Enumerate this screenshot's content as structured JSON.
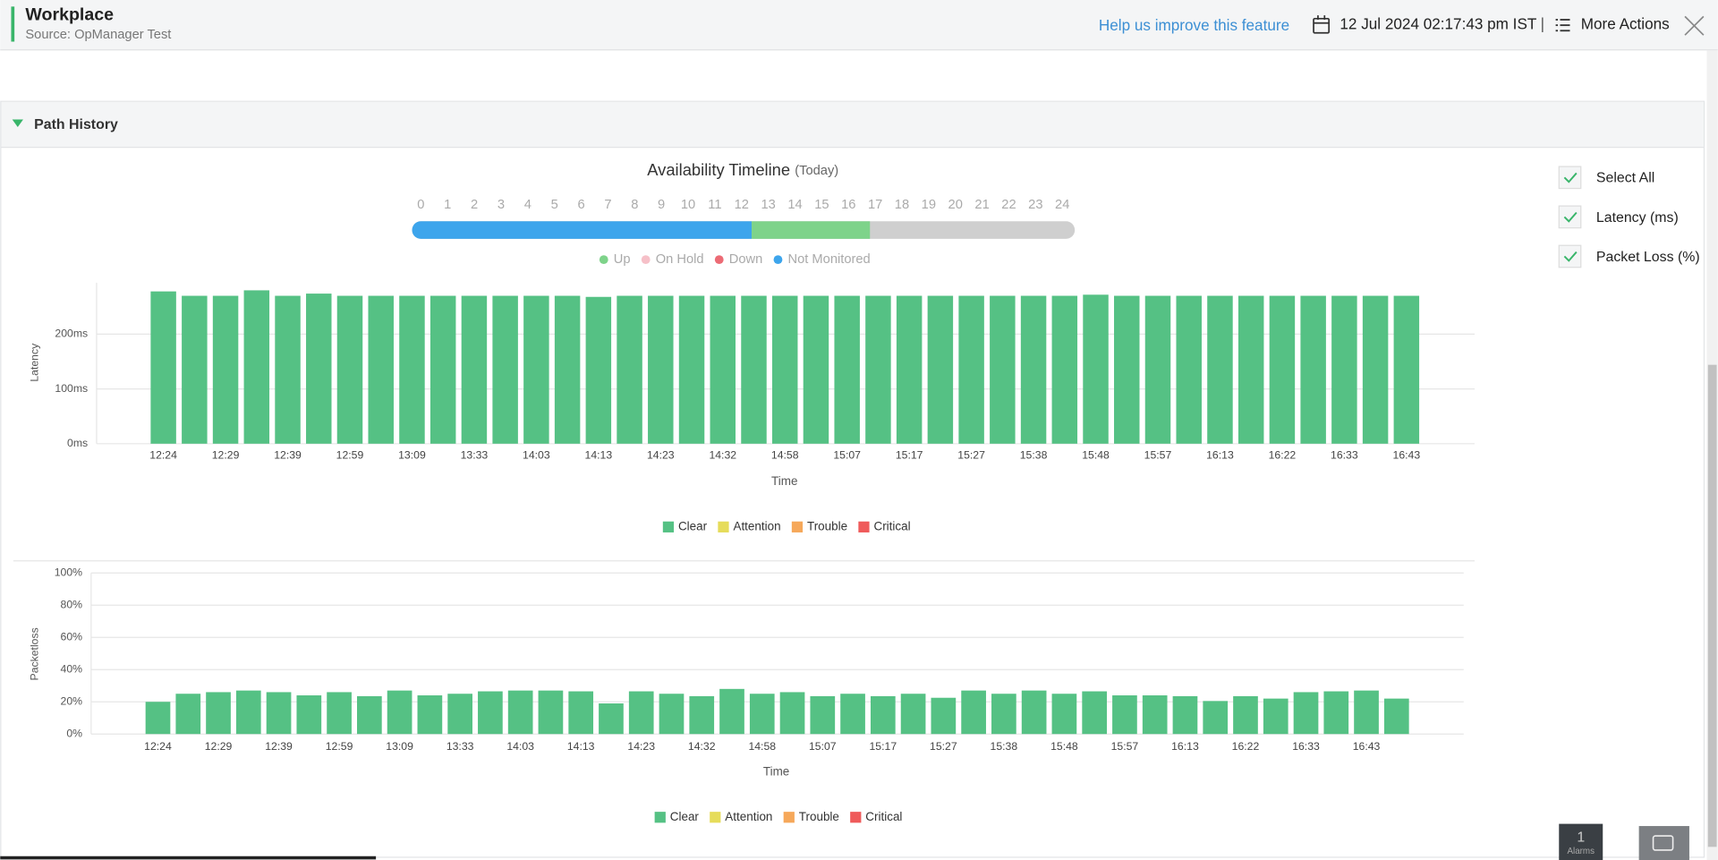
{
  "header": {
    "title": "Workplace",
    "source": "Source: OpManager Test",
    "feedback": "Help us improve this feature",
    "datetime": "12 Jul 2024 02:17:43 pm IST",
    "separator": "|",
    "more_actions": "More Actions"
  },
  "panel": {
    "title": "Path History"
  },
  "availability": {
    "title": "Availability Timeline",
    "subtitle": "(Today)",
    "hours": [
      "0",
      "1",
      "2",
      "3",
      "4",
      "5",
      "6",
      "7",
      "8",
      "9",
      "10",
      "11",
      "12",
      "13",
      "14",
      "15",
      "16",
      "17",
      "18",
      "19",
      "20",
      "21",
      "22",
      "23",
      "24"
    ],
    "legend": [
      {
        "name": "Up",
        "color": "#7ed38a"
      },
      {
        "name": "On Hold",
        "color": "#f6c0c8"
      },
      {
        "name": "Down",
        "color": "#ec6b75"
      },
      {
        "name": "Not Monitored",
        "color": "#3da5ec"
      }
    ]
  },
  "options": [
    "Select All",
    "Latency (ms)",
    "Packet Loss (%)"
  ],
  "alarms": {
    "count": "1",
    "label": "Alarms"
  },
  "chart_data": [
    {
      "type": "bar",
      "y_label": "Latency",
      "x_label": "Time",
      "color": "#55c184",
      "grid": true,
      "categories": [
        "12:24",
        null,
        "12:29",
        null,
        "12:39",
        null,
        "12:59",
        null,
        "13:09",
        null,
        "13:33",
        null,
        "14:03",
        null,
        "14:13",
        null,
        "14:23",
        null,
        "14:32",
        null,
        "14:58",
        null,
        "15:07",
        null,
        "15:17",
        null,
        "15:27",
        null,
        "15:38",
        null,
        "15:48",
        null,
        "15:57",
        null,
        "16:13",
        null,
        "16:22",
        null,
        "16:33",
        null,
        "16:43"
      ],
      "values": [
        278,
        270,
        270,
        280,
        270,
        274,
        270,
        270,
        270,
        270,
        270,
        270,
        270,
        270,
        268,
        270,
        270,
        270,
        270,
        270,
        270,
        270,
        270,
        270,
        270,
        270,
        270,
        270,
        270,
        270,
        272,
        270,
        270,
        270,
        270,
        270,
        270,
        270,
        270,
        270,
        270
      ],
      "ylim": [
        0,
        294
      ],
      "yticks": [
        {
          "value": 0,
          "label": "0ms"
        },
        {
          "value": 100,
          "label": "100ms"
        },
        {
          "value": 200,
          "label": "200ms"
        }
      ],
      "legend": [
        {
          "name": "Clear",
          "color": "#55c184"
        },
        {
          "name": "Attention",
          "color": "#e6dc5a"
        },
        {
          "name": "Trouble",
          "color": "#f6a85a"
        },
        {
          "name": "Critical",
          "color": "#ef5a5a"
        }
      ]
    },
    {
      "type": "bar",
      "y_label": "Packetloss",
      "x_label": "Time",
      "color": "#55c184",
      "grid": true,
      "categories": [
        "12:24",
        null,
        "12:29",
        null,
        "12:39",
        null,
        "12:59",
        null,
        "13:09",
        null,
        "13:33",
        null,
        "14:03",
        null,
        "14:13",
        null,
        "14:23",
        null,
        "14:32",
        null,
        "14:58",
        null,
        "15:07",
        null,
        "15:17",
        null,
        "15:27",
        null,
        "15:38",
        null,
        "15:48",
        null,
        "15:57",
        null,
        "16:13",
        null,
        "16:22",
        null,
        "16:33",
        null,
        "16:43",
        null
      ],
      "values": [
        20,
        25,
        26,
        27,
        26,
        24,
        26,
        23.5,
        27,
        24,
        25,
        26.5,
        27,
        27,
        26.5,
        19,
        26.5,
        25,
        23.5,
        28,
        25,
        26,
        23.5,
        25,
        23.5,
        25,
        22.5,
        27,
        25,
        27,
        25,
        26.5,
        24,
        24,
        23.5,
        20.5,
        23.5,
        22,
        26,
        26.5,
        27,
        22
      ],
      "ylim": [
        0,
        100
      ],
      "yticks": [
        {
          "value": 0,
          "label": "0%"
        },
        {
          "value": 20,
          "label": "20%"
        },
        {
          "value": 40,
          "label": "40%"
        },
        {
          "value": 60,
          "label": "60%"
        },
        {
          "value": 80,
          "label": "80%"
        },
        {
          "value": 100,
          "label": "100%"
        }
      ],
      "legend": [
        {
          "name": "Clear",
          "color": "#55c184"
        },
        {
          "name": "Attention",
          "color": "#e6dc5a"
        },
        {
          "name": "Trouble",
          "color": "#f6a85a"
        },
        {
          "name": "Critical",
          "color": "#ef5a5a"
        }
      ]
    }
  ]
}
